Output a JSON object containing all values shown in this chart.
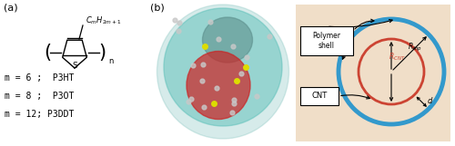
{
  "panel_a_label": "(a)",
  "panel_b_label": "(b)",
  "text_line1": "m = 6 ;  P3HT",
  "text_line2": "m = 8 ;  P3OT",
  "text_line3": "m = 12; P3DDT",
  "polymer_shell_label": "Polymer\nshell",
  "cnt_label": "CNT",
  "outer_circle_color": "#3399CC",
  "inner_circle_color": "#CC4433",
  "background_color": "#F0DEC8",
  "fig_width": 5.0,
  "fig_height": 1.61,
  "dpi": 100
}
